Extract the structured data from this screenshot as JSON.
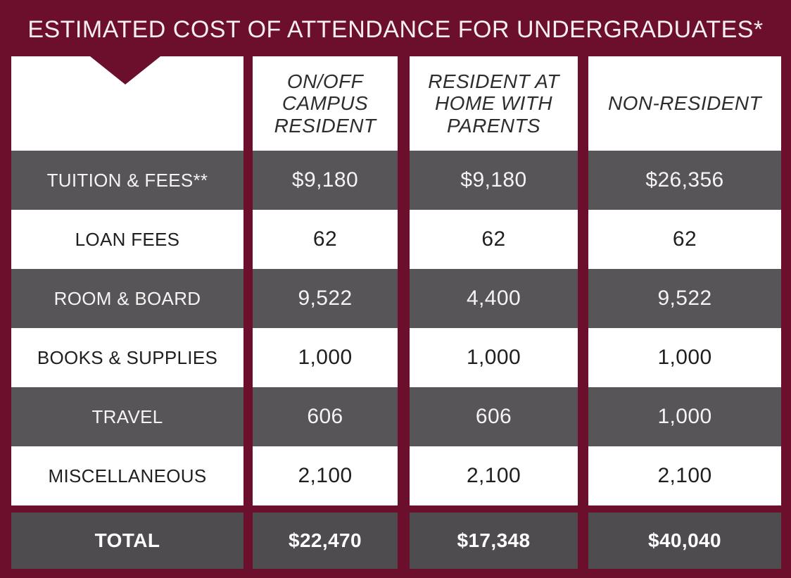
{
  "chart_data": {
    "type": "table",
    "title": "ESTIMATED COST OF ATTENDANCE FOR UNDERGRADUATES*",
    "columns": [
      "ON/OFF CAMPUS RESIDENT",
      "RESIDENT AT HOME WITH PARENTS",
      "NON-RESIDENT"
    ],
    "rows": [
      {
        "label": "TUITION & FEES**",
        "values": [
          "$9,180",
          "$9,180",
          "$26,356"
        ]
      },
      {
        "label": "LOAN FEES",
        "values": [
          "62",
          "62",
          "62"
        ]
      },
      {
        "label": "ROOM & BOARD",
        "values": [
          "9,522",
          "4,400",
          "9,522"
        ]
      },
      {
        "label": "BOOKS & SUPPLIES",
        "values": [
          "1,000",
          "1,000",
          "1,000"
        ]
      },
      {
        "label": "TRAVEL",
        "values": [
          "606",
          "606",
          "1,000"
        ]
      },
      {
        "label": "MISCELLANEOUS",
        "values": [
          "2,100",
          "2,100",
          "2,100"
        ]
      }
    ],
    "total": {
      "label": "TOTAL",
      "values": [
        "$22,470",
        "$17,348",
        "$40,040"
      ]
    },
    "colors": {
      "background": "#6b0f2c",
      "header": "#ffffff",
      "dark_row": "#575557",
      "light_row": "#ffffff",
      "total_row": "#4e4c4e"
    }
  }
}
